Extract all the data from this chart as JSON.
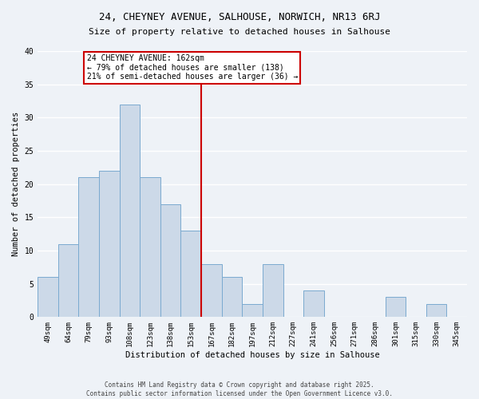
{
  "title": "24, CHEYNEY AVENUE, SALHOUSE, NORWICH, NR13 6RJ",
  "subtitle": "Size of property relative to detached houses in Salhouse",
  "xlabel": "Distribution of detached houses by size in Salhouse",
  "ylabel": "Number of detached properties",
  "bar_labels": [
    "49sqm",
    "64sqm",
    "79sqm",
    "93sqm",
    "108sqm",
    "123sqm",
    "138sqm",
    "153sqm",
    "167sqm",
    "182sqm",
    "197sqm",
    "212sqm",
    "227sqm",
    "241sqm",
    "256sqm",
    "271sqm",
    "286sqm",
    "301sqm",
    "315sqm",
    "330sqm",
    "345sqm"
  ],
  "bar_values": [
    6,
    11,
    21,
    22,
    32,
    21,
    17,
    13,
    8,
    6,
    2,
    8,
    0,
    4,
    0,
    0,
    0,
    3,
    0,
    2,
    0
  ],
  "bar_color": "#ccd9e8",
  "bar_edge_color": "#7aaad0",
  "annotation_text": "24 CHEYNEY AVENUE: 162sqm\n← 79% of detached houses are smaller (138)\n21% of semi-detached houses are larger (36) →",
  "annotation_box_color": "#ffffff",
  "annotation_box_edge": "#cc0000",
  "vline_color": "#cc0000",
  "vline_x": 7.5,
  "ylim": [
    0,
    40
  ],
  "yticks": [
    0,
    5,
    10,
    15,
    20,
    25,
    30,
    35,
    40
  ],
  "footer_text": "Contains HM Land Registry data © Crown copyright and database right 2025.\nContains public sector information licensed under the Open Government Licence v3.0.",
  "bg_color": "#eef2f7",
  "plot_bg_color": "#eef2f7",
  "grid_color": "#ffffff",
  "title_fontsize": 9,
  "subtitle_fontsize": 8.5
}
